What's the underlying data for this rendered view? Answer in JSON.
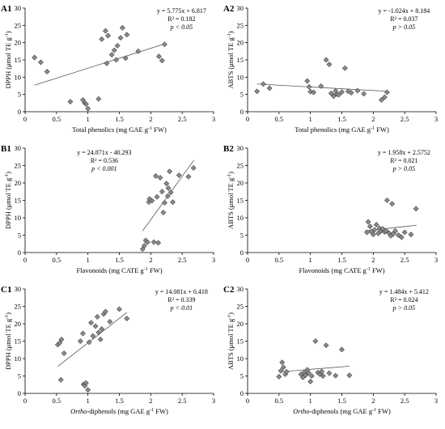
{
  "panels": [
    {
      "id": "A1",
      "ylabel_parts": [
        {
          "text": "DPPH (μmol TE g",
          "sup": ""
        },
        {
          "text": "",
          "sup": "-1"
        },
        {
          "text": ")",
          "sup": ""
        }
      ],
      "xlabel_parts": [
        {
          "text": "Total phenolics (mg GAE g",
          "sup": "",
          "italic": false
        },
        {
          "text": "",
          "sup": "-1"
        },
        {
          "text": " FW)",
          "sup": ""
        }
      ],
      "equation": "y = 5.775x + 6.817",
      "r2": "R² = 0.182",
      "p": "p < 0.05"
    },
    {
      "id": "A2",
      "ylabel_parts": [
        {
          "text": "ABTS (μmol TE g",
          "sup": ""
        },
        {
          "text": "",
          "sup": "-1"
        },
        {
          "text": ")",
          "sup": ""
        }
      ],
      "xlabel_parts": [
        {
          "text": "Total phenolics (mg GAE g",
          "sup": "",
          "italic": false
        },
        {
          "text": "",
          "sup": "-1"
        },
        {
          "text": " FW)",
          "sup": ""
        }
      ],
      "equation": "y = -1.024x + 8.184",
      "r2": "R² = 0.037",
      "p": "p > 0.05"
    },
    {
      "id": "B1",
      "ylabel_parts": [
        {
          "text": "DPPH (μmol TE g",
          "sup": ""
        },
        {
          "text": "",
          "sup": "-1"
        },
        {
          "text": ")",
          "sup": ""
        }
      ],
      "xlabel_parts": [
        {
          "text": "Flavonoids (mg CATE g",
          "sup": "",
          "italic": false
        },
        {
          "text": "",
          "sup": "-1"
        },
        {
          "text": " FW)",
          "sup": ""
        }
      ],
      "equation": "y = 24.871x - 40.293",
      "r2": "R² = 0.536",
      "p": "p < 0.001"
    },
    {
      "id": "B2",
      "ylabel_parts": [
        {
          "text": "ABTS (μmol TE g",
          "sup": ""
        },
        {
          "text": "",
          "sup": "-1"
        },
        {
          "text": ")",
          "sup": ""
        }
      ],
      "xlabel_parts": [
        {
          "text": "Flavonoids (mg CATE g",
          "sup": "",
          "italic": false
        },
        {
          "text": "",
          "sup": "-1"
        },
        {
          "text": " FW)",
          "sup": ""
        }
      ],
      "equation": "y = 1.958x + 2.5752",
      "r2": "R² = 0.021",
      "p": "p > 0.05"
    },
    {
      "id": "C1",
      "ylabel_parts": [
        {
          "text": "DPPH (μmol TE g",
          "sup": ""
        },
        {
          "text": "",
          "sup": "-1"
        },
        {
          "text": ")",
          "sup": ""
        }
      ],
      "xlabel_parts": [
        {
          "text": "Ortho",
          "sup": "",
          "italic": true
        },
        {
          "text": "-diphenols (mg GAE g",
          "sup": ""
        },
        {
          "text": "",
          "sup": "-1"
        },
        {
          "text": " FW)",
          "sup": ""
        }
      ],
      "equation": "y = 14.081x + 0.418",
      "r2": "R² = 0.339",
      "p": "p < 0.01"
    },
    {
      "id": "C2",
      "ylabel_parts": [
        {
          "text": "ABTS (μmol TE g",
          "sup": ""
        },
        {
          "text": "",
          "sup": "-1"
        },
        {
          "text": ")",
          "sup": ""
        }
      ],
      "xlabel_parts": [
        {
          "text": "Ortho",
          "sup": "",
          "italic": true
        },
        {
          "text": "-diphenols (mg GAE g",
          "sup": ""
        },
        {
          "text": "",
          "sup": "-1"
        },
        {
          "text": " FW)",
          "sup": ""
        }
      ],
      "equation": "y = 1.484x + 5.412",
      "r2": "R² = 0.024",
      "p": "p > 0.05"
    }
  ],
  "chart_data": [
    {
      "panel": "A1",
      "type": "scatter",
      "xlabel": "Total phenolics (mg GAE g-1 FW)",
      "ylabel": "DPPH (μmol TE g-1)",
      "xlim": [
        0,
        3
      ],
      "ylim": [
        0,
        30
      ],
      "xticks": [
        0,
        0.5,
        1,
        1.5,
        2,
        2.5,
        3
      ],
      "yticks": [
        0,
        5,
        10,
        15,
        20,
        25,
        30
      ],
      "grid": false,
      "marker": "diamond",
      "marker_color": "#8c8c8c",
      "trendline": {
        "slope": 5.775,
        "intercept": 6.817,
        "x_range": [
          0.15,
          2.22
        ]
      },
      "points": [
        [
          0.15,
          15.7
        ],
        [
          0.25,
          14.3
        ],
        [
          0.35,
          11.6
        ],
        [
          0.72,
          2.9
        ],
        [
          0.92,
          3.4
        ],
        [
          0.95,
          2.5
        ],
        [
          0.97,
          2.2
        ],
        [
          1.0,
          0.9
        ],
        [
          1.17,
          3.7
        ],
        [
          1.22,
          21.0
        ],
        [
          1.28,
          23.4
        ],
        [
          1.3,
          14.0
        ],
        [
          1.32,
          22.0
        ],
        [
          1.38,
          16.5
        ],
        [
          1.42,
          17.8
        ],
        [
          1.45,
          15.0
        ],
        [
          1.47,
          19.1
        ],
        [
          1.52,
          21.4
        ],
        [
          1.55,
          24.3
        ],
        [
          1.6,
          15.5
        ],
        [
          1.62,
          22.3
        ],
        [
          1.8,
          17.5
        ],
        [
          2.13,
          16.0
        ],
        [
          2.18,
          14.8
        ],
        [
          2.22,
          19.5
        ]
      ]
    },
    {
      "panel": "A2",
      "type": "scatter",
      "xlabel": "Total phenolics (mg GAE g-1 FW)",
      "ylabel": "ABTS (μmol TE g-1)",
      "xlim": [
        0,
        3
      ],
      "ylim": [
        0,
        30
      ],
      "xticks": [
        0,
        0.5,
        1,
        1.5,
        2,
        2.5,
        3
      ],
      "yticks": [
        0,
        5,
        10,
        15,
        20,
        25,
        30
      ],
      "grid": false,
      "marker": "diamond",
      "marker_color": "#8c8c8c",
      "trendline": {
        "slope": -1.024,
        "intercept": 8.184,
        "x_range": [
          0.15,
          2.22
        ]
      },
      "points": [
        [
          0.15,
          5.9
        ],
        [
          0.25,
          8.0
        ],
        [
          0.35,
          6.8
        ],
        [
          0.95,
          8.9
        ],
        [
          0.98,
          7.2
        ],
        [
          1.0,
          5.8
        ],
        [
          1.05,
          5.6
        ],
        [
          1.17,
          7.4
        ],
        [
          1.25,
          15.0
        ],
        [
          1.3,
          13.7
        ],
        [
          1.33,
          5.3
        ],
        [
          1.37,
          4.5
        ],
        [
          1.4,
          6.0
        ],
        [
          1.42,
          5.1
        ],
        [
          1.45,
          4.9
        ],
        [
          1.5,
          5.7
        ],
        [
          1.55,
          12.6
        ],
        [
          1.6,
          5.9
        ],
        [
          1.65,
          5.5
        ],
        [
          1.75,
          6.1
        ],
        [
          1.85,
          5.2
        ],
        [
          2.13,
          3.4
        ],
        [
          2.18,
          4.2
        ],
        [
          2.22,
          5.6
        ]
      ]
    },
    {
      "panel": "B1",
      "type": "scatter",
      "xlabel": "Flavonoids (mg CATE g-1 FW)",
      "ylabel": "DPPH (μmol TE g-1)",
      "xlim": [
        0,
        3
      ],
      "ylim": [
        0,
        30
      ],
      "xticks": [
        0,
        0.5,
        1,
        1.5,
        2,
        2.5,
        3
      ],
      "yticks": [
        0,
        5,
        10,
        15,
        20,
        25,
        30
      ],
      "grid": false,
      "marker": "diamond",
      "marker_color": "#8c8c8c",
      "trendline": {
        "slope": 24.871,
        "intercept": -40.293,
        "x_range": [
          1.87,
          2.69
        ]
      },
      "points": [
        [
          1.87,
          1.0
        ],
        [
          1.9,
          2.0
        ],
        [
          1.92,
          3.5
        ],
        [
          1.95,
          3.0
        ],
        [
          1.97,
          14.5
        ],
        [
          1.98,
          15.4
        ],
        [
          2.02,
          14.9
        ],
        [
          2.05,
          3.0
        ],
        [
          2.08,
          22.0
        ],
        [
          2.1,
          16.0
        ],
        [
          2.12,
          2.8
        ],
        [
          2.15,
          21.5
        ],
        [
          2.18,
          17.5
        ],
        [
          2.2,
          11.5
        ],
        [
          2.22,
          14.3
        ],
        [
          2.25,
          19.8
        ],
        [
          2.27,
          16.2
        ],
        [
          2.28,
          18.5
        ],
        [
          2.3,
          23.3
        ],
        [
          2.32,
          17.3
        ],
        [
          2.35,
          14.5
        ],
        [
          2.45,
          22.2
        ],
        [
          2.6,
          21.8
        ],
        [
          2.68,
          24.3
        ]
      ]
    },
    {
      "panel": "B2",
      "type": "scatter",
      "xlabel": "Flavonoids (mg CATE g-1 FW)",
      "ylabel": "ABTS (μmol TE g-1)",
      "xlim": [
        0,
        3
      ],
      "ylim": [
        0,
        30
      ],
      "xticks": [
        0,
        0.5,
        1,
        1.5,
        2,
        2.5,
        3
      ],
      "yticks": [
        0,
        5,
        10,
        15,
        20,
        25,
        30
      ],
      "grid": false,
      "marker": "diamond",
      "marker_color": "#8c8c8c",
      "trendline": {
        "slope": 1.958,
        "intercept": 2.5752,
        "x_range": [
          1.87,
          2.69
        ]
      },
      "points": [
        [
          1.9,
          5.8
        ],
        [
          1.92,
          8.8
        ],
        [
          1.95,
          7.5
        ],
        [
          1.97,
          6.0
        ],
        [
          2.0,
          5.2
        ],
        [
          2.02,
          6.5
        ],
        [
          2.05,
          8.0
        ],
        [
          2.08,
          5.5
        ],
        [
          2.1,
          7.0
        ],
        [
          2.12,
          6.2
        ],
        [
          2.15,
          6.8
        ],
        [
          2.18,
          5.9
        ],
        [
          2.2,
          6.3
        ],
        [
          2.22,
          15.0
        ],
        [
          2.25,
          5.6
        ],
        [
          2.28,
          4.8
        ],
        [
          2.3,
          14.0
        ],
        [
          2.32,
          5.4
        ],
        [
          2.35,
          6.2
        ],
        [
          2.4,
          5.0
        ],
        [
          2.45,
          4.4
        ],
        [
          2.5,
          5.8
        ],
        [
          2.6,
          5.2
        ],
        [
          2.68,
          12.6
        ]
      ]
    },
    {
      "panel": "C1",
      "type": "scatter",
      "xlabel": "Ortho-diphenols (mg GAE g-1 FW)",
      "ylabel": "DPPH (μmol TE g-1)",
      "xlim": [
        0,
        3
      ],
      "ylim": [
        0,
        30
      ],
      "xticks": [
        0,
        0.5,
        1,
        1.5,
        2,
        2.5,
        3
      ],
      "yticks": [
        0,
        5,
        10,
        15,
        20,
        25,
        30
      ],
      "grid": false,
      "marker": "diamond",
      "marker_color": "#8c8c8c",
      "trendline": {
        "slope": 14.081,
        "intercept": 0.418,
        "x_range": [
          0.52,
          1.62
        ]
      },
      "points": [
        [
          0.52,
          14.0
        ],
        [
          0.55,
          14.5
        ],
        [
          0.57,
          3.9
        ],
        [
          0.58,
          15.5
        ],
        [
          0.62,
          11.5
        ],
        [
          0.88,
          15.0
        ],
        [
          0.92,
          17.2
        ],
        [
          0.93,
          2.6
        ],
        [
          0.95,
          2.2
        ],
        [
          0.97,
          3.0
        ],
        [
          1.0,
          1.0
        ],
        [
          1.02,
          14.7
        ],
        [
          1.05,
          20.3
        ],
        [
          1.08,
          16.5
        ],
        [
          1.12,
          19.3
        ],
        [
          1.15,
          22.0
        ],
        [
          1.17,
          17.5
        ],
        [
          1.2,
          15.5
        ],
        [
          1.22,
          18.5
        ],
        [
          1.25,
          22.8
        ],
        [
          1.28,
          23.5
        ],
        [
          1.35,
          20.6
        ],
        [
          1.5,
          24.2
        ],
        [
          1.62,
          21.5
        ]
      ]
    },
    {
      "panel": "C2",
      "type": "scatter",
      "xlabel": "Ortho-diphenols (mg GAE g-1 FW)",
      "ylabel": "ABTS (μmol TE g-1)",
      "xlim": [
        0,
        3
      ],
      "ylim": [
        0,
        30
      ],
      "xticks": [
        0,
        0.5,
        1,
        1.5,
        2,
        2.5,
        3
      ],
      "yticks": [
        0,
        5,
        10,
        15,
        20,
        25,
        30
      ],
      "grid": false,
      "marker": "diamond",
      "marker_color": "#8c8c8c",
      "trendline": {
        "slope": 1.484,
        "intercept": 5.412,
        "x_range": [
          0.5,
          1.62
        ]
      },
      "points": [
        [
          0.5,
          4.8
        ],
        [
          0.53,
          6.5
        ],
        [
          0.55,
          8.9
        ],
        [
          0.57,
          7.5
        ],
        [
          0.6,
          5.5
        ],
        [
          0.62,
          6.2
        ],
        [
          0.85,
          5.5
        ],
        [
          0.88,
          4.6
        ],
        [
          0.9,
          6.0
        ],
        [
          0.92,
          5.2
        ],
        [
          0.95,
          6.8
        ],
        [
          0.97,
          5.9
        ],
        [
          1.0,
          3.4
        ],
        [
          1.02,
          5.0
        ],
        [
          1.08,
          15.0
        ],
        [
          1.12,
          6.0
        ],
        [
          1.15,
          5.5
        ],
        [
          1.18,
          6.3
        ],
        [
          1.2,
          5.0
        ],
        [
          1.25,
          13.8
        ],
        [
          1.3,
          5.8
        ],
        [
          1.4,
          5.1
        ],
        [
          1.5,
          12.6
        ],
        [
          1.62,
          5.2
        ]
      ]
    }
  ]
}
